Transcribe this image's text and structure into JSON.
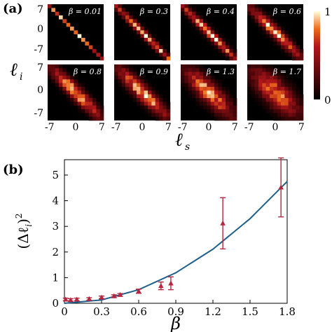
{
  "panel_a": {
    "label": "(a)",
    "y_axis_symbol": "ℓ",
    "y_axis_sub": "i",
    "x_axis_symbol": "ℓ",
    "x_axis_sub": "s",
    "y_ticks": [
      "7",
      "0",
      "-7"
    ],
    "x_ticks": [
      "-7",
      "0",
      "7"
    ],
    "colorbar_ticks": [
      "1",
      "0"
    ],
    "colors": {
      "low": "#000000",
      "mid": "#b0161a",
      "high": "#ffffe0"
    },
    "matrices": [
      {
        "beta_label": "β = 0.01",
        "beta": 0.01
      },
      {
        "beta_label": "β = 0.3",
        "beta": 0.3
      },
      {
        "beta_label": "β = 0.4",
        "beta": 0.4
      },
      {
        "beta_label": "β = 0.6",
        "beta": 0.6
      },
      {
        "beta_label": "β = 0.8",
        "beta": 0.8
      },
      {
        "beta_label": "β = 0.9",
        "beta": 0.9
      },
      {
        "beta_label": "β = 1.3",
        "beta": 1.3
      },
      {
        "beta_label": "β = 1.7",
        "beta": 1.7
      }
    ]
  },
  "panel_b": {
    "label": "(b)",
    "ylabel": "(Δℓ",
    "ylabel_sub": "i",
    "ylabel_end": ")",
    "ylabel_sup": "2",
    "xlabel": "β"
  },
  "chart_data": {
    "type": "scatter",
    "x_ticks": [
      "0",
      "0.3",
      "0.6",
      "0.9",
      "1.2",
      "1.5",
      "1.8"
    ],
    "y_ticks": [
      "0",
      "1",
      "2",
      "3",
      "4",
      "5"
    ],
    "xlim": [
      0,
      1.8
    ],
    "ylim": [
      0,
      5.6
    ],
    "series": [
      {
        "kind": "points",
        "color": "#b5263f",
        "x": [
          0.01,
          0.05,
          0.1,
          0.2,
          0.3,
          0.4,
          0.45,
          0.6,
          0.78,
          0.86,
          1.28,
          1.75
        ],
        "y": [
          0.15,
          0.13,
          0.15,
          0.17,
          0.23,
          0.28,
          0.33,
          0.47,
          0.68,
          0.78,
          3.12,
          4.52
        ],
        "err": [
          0.05,
          0.05,
          0.05,
          0.05,
          0.05,
          0.05,
          0.05,
          0.08,
          0.15,
          0.25,
          1.0,
          1.15
        ]
      },
      {
        "kind": "curve",
        "color": "#1f5f8b",
        "x": [
          0,
          0.3,
          0.6,
          0.9,
          1.2,
          1.5,
          1.8
        ],
        "y": [
          0,
          0.13,
          0.53,
          1.19,
          2.11,
          3.3,
          4.75
        ]
      }
    ]
  }
}
